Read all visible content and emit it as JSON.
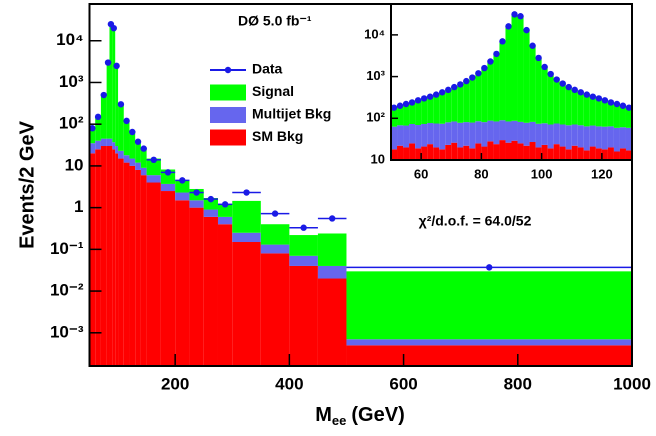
{
  "chart_data": [
    {
      "type": "histogram",
      "title": "DØ 5.0 fb⁻¹",
      "annotation": "χ²/d.o.f. = 64.0/52",
      "ylabel": "Events/2 GeV",
      "xlabel": "M",
      "xlabel_sub": "ee",
      "xlabel_unit": "(GeV)",
      "log_y": true,
      "stacked": true,
      "xlim": [
        50,
        1000
      ],
      "xticks": [
        200,
        400,
        600,
        800,
        1000
      ],
      "ylim": [
        0.00016,
        76000
      ],
      "yticks": [
        {
          "value": 0.001,
          "label": "10⁻³"
        },
        {
          "value": 0.01,
          "label": "10⁻²"
        },
        {
          "value": 0.1,
          "label": "10⁻¹"
        },
        1,
        10,
        {
          "value": 100,
          "label": "10²"
        },
        {
          "value": 1000,
          "label": "10³"
        },
        {
          "value": 10000,
          "label": "10⁴"
        }
      ],
      "bins": [
        50,
        60,
        70,
        80,
        85,
        90,
        95,
        100,
        110,
        120,
        130,
        140,
        150,
        175,
        200,
        225,
        250,
        275,
        300,
        350,
        400,
        450,
        500,
        1000
      ],
      "series": [
        {
          "name": "Data",
          "color": "#1a1ae6",
          "marker": "circle",
          "values": [
            80,
            150,
            500,
            3000,
            25000,
            20000,
            2500,
            300,
            120,
            65,
            38,
            26,
            14,
            7,
            4.5,
            2.3,
            1.6,
            1.2,
            2.3,
            0.72,
            0.33,
            0.55,
            0.037
          ]
        },
        {
          "name": "Signal",
          "color": "#00ff00",
          "values": [
            45,
            110,
            450,
            3000,
            25000,
            20000,
            2500,
            280,
            100,
            50,
            28,
            18,
            9,
            4.5,
            2.2,
            1.3,
            0.8,
            0.6,
            1.2,
            0.27,
            0.15,
            0.2,
            0.029
          ]
        },
        {
          "name": "Multijet Bkg",
          "color": "#6666ee",
          "values": [
            15,
            15,
            15,
            15,
            15,
            12,
            10,
            8,
            6,
            5,
            4,
            3,
            2,
            1.2,
            0.8,
            0.5,
            0.3,
            0.2,
            0.1,
            0.05,
            0.03,
            0.02,
            0.0002
          ]
        },
        {
          "name": "SM Bkg",
          "color": "#ff0000",
          "values": [
            20,
            25,
            30,
            30,
            30,
            25,
            20,
            15,
            12,
            10,
            8,
            6,
            4,
            2.5,
            1.5,
            1,
            0.6,
            0.4,
            0.15,
            0.08,
            0.04,
            0.02,
            0.0005
          ]
        }
      ]
    },
    {
      "type": "histogram",
      "log_y": true,
      "stacked": true,
      "xlim": [
        50,
        130
      ],
      "xticks": [
        60,
        80,
        100,
        120
      ],
      "ylim": [
        10,
        55000
      ],
      "yticks": [
        10,
        {
          "value": 100,
          "label": "10²"
        },
        {
          "value": 1000,
          "label": "10³"
        },
        {
          "value": 10000,
          "label": "10⁴"
        }
      ],
      "bins": [
        50,
        52,
        54,
        56,
        58,
        60,
        62,
        64,
        66,
        68,
        70,
        72,
        74,
        76,
        78,
        80,
        82,
        84,
        86,
        88,
        90,
        92,
        94,
        96,
        98,
        100,
        102,
        104,
        106,
        108,
        110,
        112,
        114,
        116,
        118,
        120,
        122,
        124,
        126,
        128,
        130
      ],
      "series": [
        {
          "color": "#1a1ae6",
          "marker": "circle",
          "values": [
            180,
            200,
            220,
            240,
            270,
            300,
            330,
            370,
            420,
            480,
            560,
            650,
            780,
            950,
            1200,
            1600,
            2300,
            3500,
            7000,
            16000,
            31000,
            28000,
            13000,
            5500,
            2800,
            1700,
            1150,
            850,
            680,
            560,
            480,
            420,
            370,
            330,
            300,
            270,
            240,
            220,
            200,
            180
          ]
        },
        {
          "color": "#00ff00",
          "values": [
            110,
            130,
            150,
            170,
            200,
            230,
            260,
            300,
            350,
            410,
            490,
            580,
            710,
            880,
            1130,
            1530,
            2230,
            3430,
            6930,
            15930,
            30930,
            27930,
            12930,
            5430,
            2730,
            1630,
            1080,
            780,
            610,
            490,
            410,
            350,
            300,
            260,
            230,
            200,
            170,
            150,
            130,
            110
          ]
        },
        {
          "color": "#6666ee",
          "values": [
            45,
            46,
            47,
            48,
            50,
            52,
            53,
            55,
            56,
            57,
            58,
            58,
            59,
            60,
            60,
            60,
            60,
            60,
            60,
            58,
            58,
            57,
            56,
            55,
            54,
            53,
            52,
            51,
            50,
            50,
            49,
            48,
            47,
            46,
            45,
            45,
            44,
            43,
            42,
            42
          ]
        },
        {
          "color": "#ff0000",
          "values": [
            18,
            22,
            20,
            25,
            19,
            21,
            24,
            20,
            18,
            23,
            26,
            20,
            22,
            19,
            25,
            21,
            28,
            24,
            30,
            26,
            29,
            25,
            22,
            27,
            20,
            23,
            19,
            24,
            21,
            18,
            22,
            20,
            17,
            21,
            19,
            18,
            20,
            16,
            19,
            17
          ]
        }
      ]
    }
  ]
}
